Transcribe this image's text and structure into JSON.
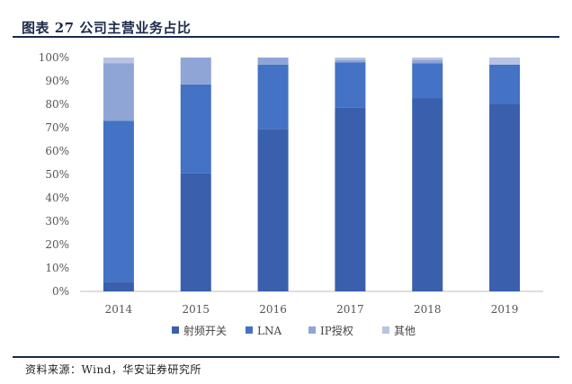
{
  "header": {
    "title": "图表 27 公司主营业务占比"
  },
  "footer": {
    "source": "资料来源：Wind，华安证券研究所"
  },
  "colors": {
    "rf_switch": "#3a5fad",
    "lna": "#4472c4",
    "ip": "#8ea5d6",
    "other": "#b7c3e3"
  },
  "chart_data": {
    "type": "bar",
    "stacked": true,
    "categories": [
      "2014",
      "2015",
      "2016",
      "2017",
      "2018",
      "2019"
    ],
    "series": [
      {
        "name": "射频开关",
        "values": [
          4,
          50.5,
          69.5,
          78.5,
          82.5,
          80
        ]
      },
      {
        "name": "LNA",
        "values": [
          69,
          38,
          27.5,
          19.5,
          15,
          17
        ]
      },
      {
        "name": "IP授权",
        "values": [
          24.5,
          11.5,
          3,
          1,
          1.5,
          0
        ]
      },
      {
        "name": "其他",
        "values": [
          2.5,
          0,
          0,
          1,
          1,
          3
        ]
      }
    ],
    "ylim": [
      0,
      100
    ],
    "yticks": [
      "0%",
      "10%",
      "20%",
      "30%",
      "40%",
      "50%",
      "60%",
      "70%",
      "80%",
      "90%",
      "100%"
    ],
    "legend_position": "bottom",
    "grid": false
  }
}
